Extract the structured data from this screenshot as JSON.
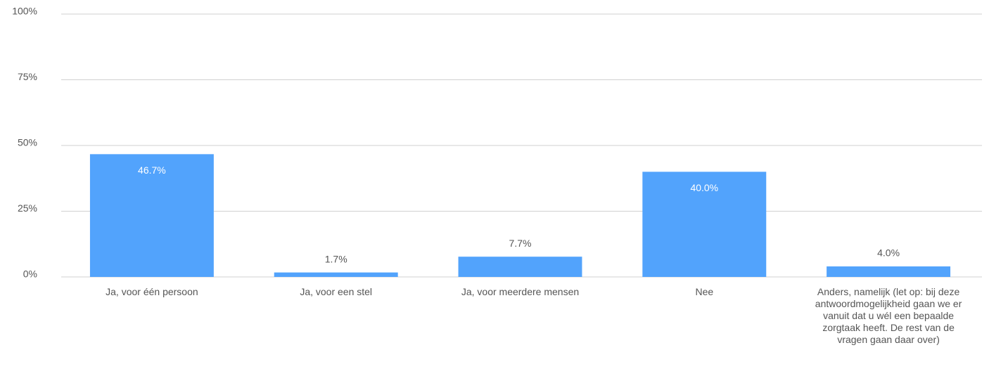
{
  "chart_data": {
    "type": "bar",
    "categories": [
      "Ja, voor één persoon",
      "Ja, voor een stel",
      "Ja, voor meerdere mensen",
      "Nee",
      "Anders, namelijk (let op: bij deze antwoordmogelijkheid gaan we er vanuit dat u wél een bepaalde zorgtaak heeft. De rest van de vragen gaan daar over)"
    ],
    "values": [
      46.7,
      1.7,
      7.7,
      40.0,
      4.0
    ],
    "value_labels": [
      "46.7%",
      "1.7%",
      "7.7%",
      "40.0%",
      "4.0%"
    ],
    "color": "#52a3fc",
    "ylim": [
      0,
      100
    ],
    "yticks": [
      {
        "value": 0,
        "label": "0%"
      },
      {
        "value": 25,
        "label": "25%"
      },
      {
        "value": 50,
        "label": "50%"
      },
      {
        "value": 75,
        "label": "75%"
      },
      {
        "value": 100,
        "label": "100%"
      }
    ],
    "grid": true
  }
}
